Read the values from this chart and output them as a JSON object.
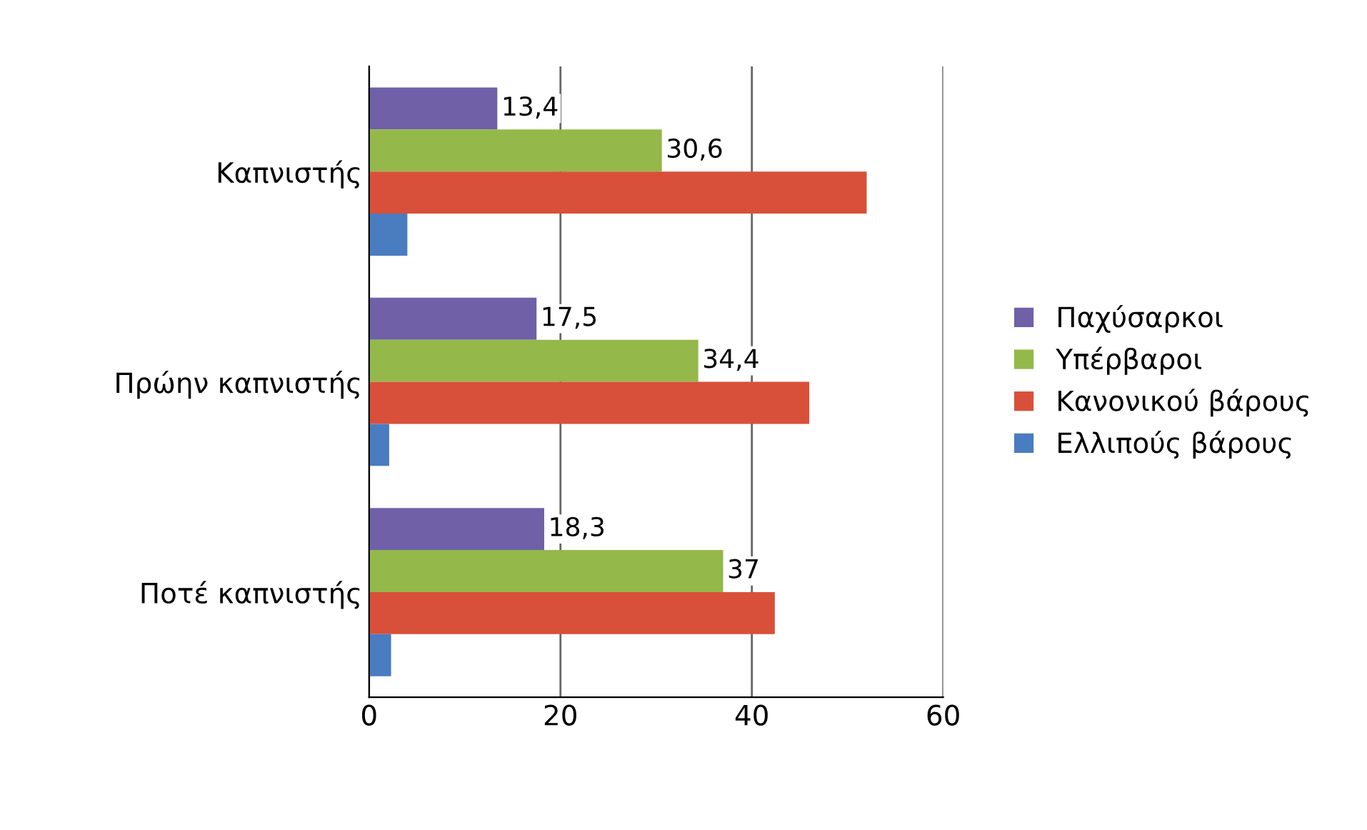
{
  "chart_data": {
    "type": "bar",
    "orientation": "horizontal",
    "categories": [
      "Καπνιστής",
      "Πρώην καπνιστής",
      "Ποτέ καπνιστής"
    ],
    "series": [
      {
        "name": "Παχύσαρκοι",
        "color": "#7060a8",
        "values": [
          13.4,
          17.5,
          18.3
        ],
        "value_labels": [
          "13,4",
          "17,5",
          "18,3"
        ]
      },
      {
        "name": "Υπέρβαροι",
        "color": "#94b84a",
        "values": [
          30.6,
          34.4,
          37
        ],
        "value_labels": [
          "30,6",
          "34,4",
          "37"
        ]
      },
      {
        "name": "Κανονικού βάρους",
        "color": "#d8503a",
        "values": [
          52,
          46,
          42.4
        ]
      },
      {
        "name": "Ελλιπούς βάρους",
        "color": "#4a7cc0",
        "values": [
          4,
          2.1,
          2.3
        ]
      }
    ],
    "xlim": [
      0,
      60
    ],
    "xticks": [
      0,
      20,
      40,
      60
    ],
    "grid": "x",
    "legend": "right"
  }
}
